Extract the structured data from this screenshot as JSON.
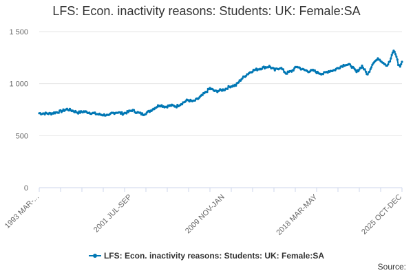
{
  "chart_data": {
    "type": "line",
    "title": "LFS: Econ. inactivity reasons: Students: UK: Female:SA",
    "xlabel": "",
    "ylabel": "",
    "ylim": [
      0,
      1500
    ],
    "yticks": [
      0,
      500,
      1000,
      1500
    ],
    "ytick_labels": [
      "0",
      "500",
      "1 000",
      "1 500"
    ],
    "grid": true,
    "legend_position": "bottom",
    "x_start": "1993 MAR-MAY",
    "x_end": "2025 OCT-DEC",
    "xtick_labels": [
      {
        "period": "1993 MAR-MAY",
        "label": "1993 MAR-..."
      },
      {
        "period": "2001 JUL-SEP",
        "label": "2001 JUL-SEP"
      },
      {
        "period": "2009 NOV-JAN",
        "label": "2009 NOV-JAN"
      },
      {
        "period": "2018 MAR-MAY",
        "label": "2018 MAR-MAY"
      },
      {
        "period": "2025 OCT-DEC",
        "label": "2025 OCT-DEC"
      }
    ],
    "series": [
      {
        "name": "LFS: Econ. inactivity reasons: Students: UK: Female:SA",
        "color": "#0077B4",
        "values": [
          {
            "x": "1993 MAR-MAY",
            "y": 715
          },
          {
            "x": "1994 MAR-MAY",
            "y": 712
          },
          {
            "x": "1995 MAR-MAY",
            "y": 735
          },
          {
            "x": "1995 SEP-NOV",
            "y": 755
          },
          {
            "x": "1996 MAR-MAY",
            "y": 740
          },
          {
            "x": "1996 SEP-NOV",
            "y": 722
          },
          {
            "x": "1997 MAR-MAY",
            "y": 732
          },
          {
            "x": "1998 MAR-MAY",
            "y": 712
          },
          {
            "x": "1998 SEP-NOV",
            "y": 702
          },
          {
            "x": "1999 MAR-MAY",
            "y": 700
          },
          {
            "x": "1999 JUN-AUG",
            "y": 688
          },
          {
            "x": "1999 SEP-NOV",
            "y": 715
          },
          {
            "x": "2000 MAR-MAY",
            "y": 725
          },
          {
            "x": "2000 SEP-NOV",
            "y": 712
          },
          {
            "x": "2001 MAR-MAY",
            "y": 728
          },
          {
            "x": "2001 JUL-SEP",
            "y": 745
          },
          {
            "x": "2002 JAN-MAR",
            "y": 722
          },
          {
            "x": "2002 JUL-SEP",
            "y": 705
          },
          {
            "x": "2003 JAN-MAR",
            "y": 730
          },
          {
            "x": "2003 JUL-SEP",
            "y": 765
          },
          {
            "x": "2004 JAN-MAR",
            "y": 795
          },
          {
            "x": "2004 JUL-SEP",
            "y": 778
          },
          {
            "x": "2005 JAN-MAR",
            "y": 790
          },
          {
            "x": "2005 JUL-SEP",
            "y": 782
          },
          {
            "x": "2006 JAN-MAR",
            "y": 812
          },
          {
            "x": "2006 JUL-SEP",
            "y": 842
          },
          {
            "x": "2007 JAN-MAR",
            "y": 828
          },
          {
            "x": "2007 JUL-SEP",
            "y": 860
          },
          {
            "x": "2008 JAN-MAR",
            "y": 905
          },
          {
            "x": "2008 JUL-SEP",
            "y": 955
          },
          {
            "x": "2009 JAN-MAR",
            "y": 925
          },
          {
            "x": "2009 NOV-JAN",
            "y": 945
          },
          {
            "x": "2010 MAY-JUL",
            "y": 975
          },
          {
            "x": "2010 NOV-JAN",
            "y": 985
          },
          {
            "x": "2011 MAY-JUL",
            "y": 1045
          },
          {
            "x": "2011 NOV-JAN",
            "y": 1090
          },
          {
            "x": "2012 MAY-JUL",
            "y": 1125
          },
          {
            "x": "2012 NOV-JAN",
            "y": 1140
          },
          {
            "x": "2013 MAY-JUL",
            "y": 1155
          },
          {
            "x": "2013 NOV-JAN",
            "y": 1165
          },
          {
            "x": "2014 MAY-JUL",
            "y": 1130
          },
          {
            "x": "2014 NOV-JAN",
            "y": 1155
          },
          {
            "x": "2015 MAY-JUL",
            "y": 1100
          },
          {
            "x": "2015 NOV-JAN",
            "y": 1120
          },
          {
            "x": "2016 MAY-JUL",
            "y": 1165
          },
          {
            "x": "2016 NOV-JAN",
            "y": 1135
          },
          {
            "x": "2017 MAY-JUL",
            "y": 1120
          },
          {
            "x": "2017 NOV-JAN",
            "y": 1125
          },
          {
            "x": "2018 MAR-MAY",
            "y": 1105
          },
          {
            "x": "2018 SEP-NOV",
            "y": 1095
          },
          {
            "x": "2019 MAR-MAY",
            "y": 1120
          },
          {
            "x": "2019 SEP-NOV",
            "y": 1130
          },
          {
            "x": "2020 MAR-MAY",
            "y": 1160
          },
          {
            "x": "2020 SEP-NOV",
            "y": 1185
          },
          {
            "x": "2021 MAR-MAY",
            "y": 1175
          },
          {
            "x": "2021 SEP-NOV",
            "y": 1110
          },
          {
            "x": "2022 MAR-MAY",
            "y": 1170
          },
          {
            "x": "2022 SEP-NOV",
            "y": 1085
          },
          {
            "x": "2023 MAR-MAY",
            "y": 1205
          },
          {
            "x": "2023 SEP-NOV",
            "y": 1240
          },
          {
            "x": "2024 MAR-MAY",
            "y": 1195
          },
          {
            "x": "2024 JUN-AUG",
            "y": 1175
          },
          {
            "x": "2024 SEP-NOV",
            "y": 1215
          },
          {
            "x": "2025 JAN-MAR",
            "y": 1320
          },
          {
            "x": "2025 APR-JUN",
            "y": 1265
          },
          {
            "x": "2025 JUN-AUG",
            "y": 1185
          },
          {
            "x": "2025 AUG-OCT",
            "y": 1165
          },
          {
            "x": "2025 OCT-DEC",
            "y": 1210
          }
        ]
      }
    ]
  },
  "legend": {
    "label": "LFS: Econ. inactivity reasons: Students: UK: Female:SA"
  },
  "footer": {
    "source_label": "Source:"
  },
  "style": {
    "series_color": "#0077B4",
    "grid_color": "#e6e6e6",
    "axis_color": "#ccd6eb",
    "text_color": "#333333",
    "tick_text_color": "#666666"
  }
}
